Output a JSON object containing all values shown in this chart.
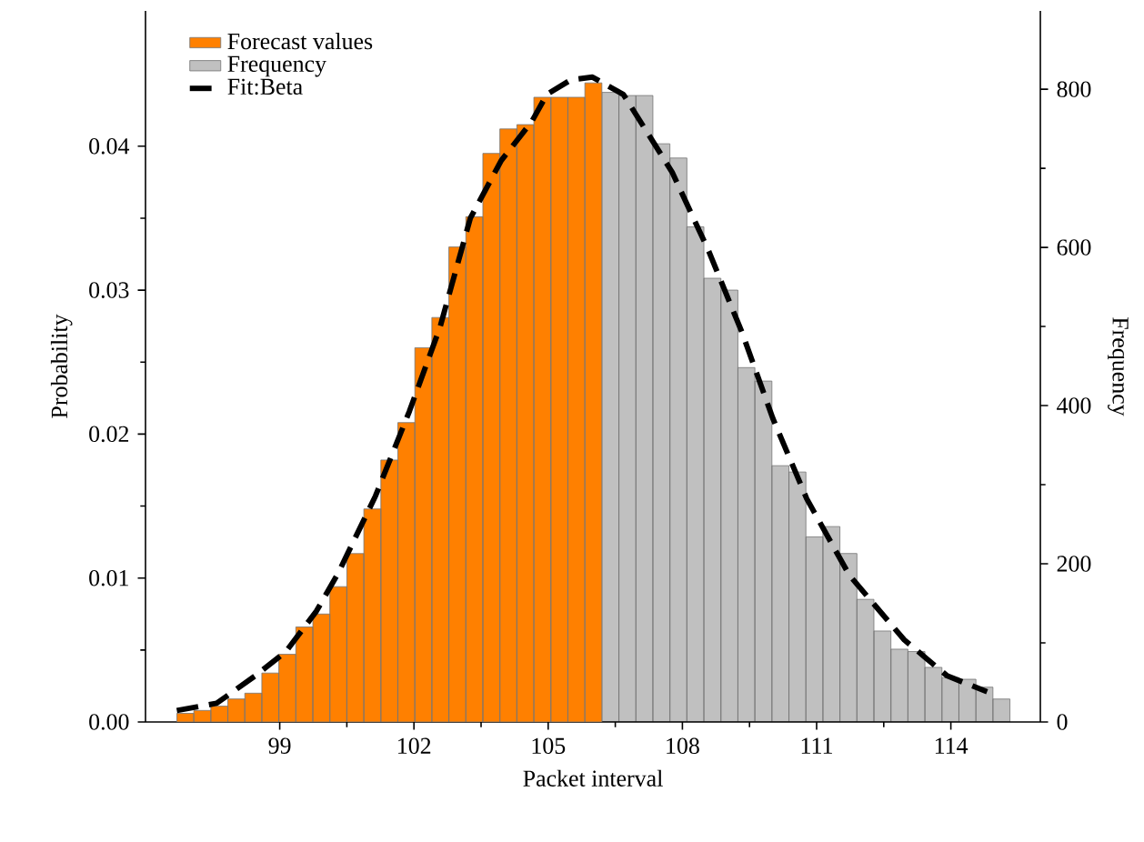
{
  "chart_data": {
    "type": "histogram",
    "xlabel": "Packet interval",
    "ylabel": "Probability",
    "y2label": "Frequency",
    "xlim": [
      96,
      116
    ],
    "xticks": [
      99,
      102,
      105,
      108,
      111,
      114
    ],
    "ylim": [
      0,
      0.0494
    ],
    "yticks": [
      {
        "value": 0,
        "label": "0.00"
      },
      {
        "value": 0.01,
        "label": "0.01"
      },
      {
        "value": 0.02,
        "label": "0.02"
      },
      {
        "value": 0.03,
        "label": "0.03"
      },
      {
        "value": 0.04,
        "label": "0.04"
      }
    ],
    "y2lim": [
      0,
      899
    ],
    "y2ticks": [
      0,
      200,
      400,
      600,
      800
    ],
    "legend": "top left",
    "series": [
      {
        "name": "Forecast values",
        "color": "#ff8000",
        "bins": [
          96.7,
          97.08,
          97.46,
          97.84,
          98.22,
          98.6,
          98.98,
          99.36,
          99.74,
          100.12,
          100.5,
          100.88,
          101.26,
          101.64,
          102.02,
          102.4,
          102.78,
          103.16,
          103.54,
          103.92,
          104.3,
          104.68,
          105.06,
          105.44,
          105.82,
          106.2
        ],
        "values": [
          0.0006,
          0.0008,
          0.0011,
          0.0016,
          0.002,
          0.0034,
          0.0047,
          0.0066,
          0.0075,
          0.0094,
          0.0117,
          0.0148,
          0.0182,
          0.0208,
          0.026,
          0.0281,
          0.033,
          0.0351,
          0.0395,
          0.0412,
          0.0415,
          0.0434,
          0.0434,
          0.0434,
          0.0444
        ]
      },
      {
        "name": "Frequency",
        "axis": "y2",
        "color": "#c0c0c0",
        "bins": [
          106.2,
          106.58,
          106.96,
          107.34,
          107.72,
          108.1,
          108.48,
          108.86,
          109.24,
          109.62,
          110.0,
          110.38,
          110.76,
          111.14,
          111.52,
          111.9,
          112.28,
          112.66,
          113.04,
          113.42,
          113.8,
          114.18,
          114.56,
          114.94,
          115.32
        ],
        "values": [
          796,
          792,
          792,
          731,
          713,
          626,
          561,
          546,
          448,
          431,
          324,
          316,
          234,
          247,
          213,
          155,
          115,
          92,
          89,
          69,
          56,
          54,
          44,
          29
        ]
      },
      {
        "name": "Fit:Beta",
        "type": "line",
        "color": "#000000",
        "line_style": "dashed",
        "marker": "none",
        "x": [
          96.7,
          97.59,
          98.45,
          99.14,
          99.82,
          100.3,
          101.14,
          101.9,
          102.58,
          103.26,
          103.95,
          104.63,
          104.97,
          105.5,
          105.99,
          106.68,
          107.77,
          108.59,
          109.34,
          110.02,
          110.78,
          111.73,
          112.96,
          113.92,
          114.81
        ],
        "values": [
          0.0008,
          0.0013,
          0.0032,
          0.0049,
          0.0077,
          0.0103,
          0.0157,
          0.0216,
          0.0274,
          0.035,
          0.039,
          0.0417,
          0.0436,
          0.0446,
          0.0448,
          0.0436,
          0.0382,
          0.0327,
          0.027,
          0.0211,
          0.0155,
          0.0102,
          0.0057,
          0.0032,
          0.0021
        ]
      }
    ]
  }
}
